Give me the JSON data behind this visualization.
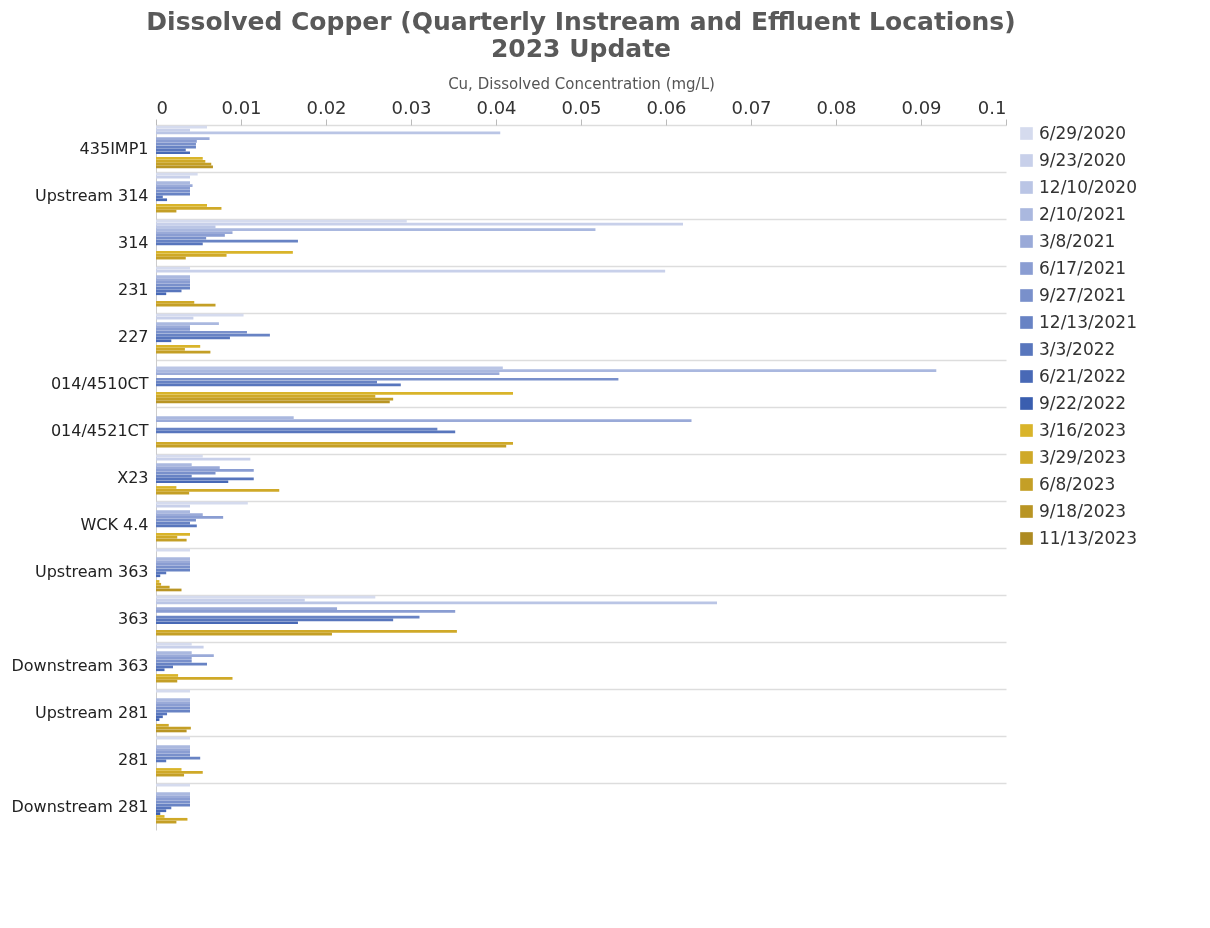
{
  "chart_data": {
    "type": "bar",
    "orientation": "horizontal",
    "title": "Dissolved Copper (Quarterly Instream and Effluent Locations)\n2023 Update",
    "xlabel": "Cu, Dissolved Concentration (mg/L)",
    "categories": [
      "435IMP1",
      "Upstream 314",
      "314",
      "231",
      "227",
      "014/4510CT",
      "014/4521CT",
      "X23",
      "WCK 4.4",
      "Upstream 363",
      "363",
      "Downstream 363",
      "Upstream 281",
      "281",
      "Downstream 281"
    ],
    "xlim": [
      0,
      0.1
    ],
    "xticks": [
      0,
      0.01,
      0.02,
      0.03,
      0.04,
      0.05,
      0.06,
      0.07,
      0.08,
      0.09,
      0.1
    ],
    "grid": "y",
    "legend": "right",
    "series": [
      {
        "name": "6/29/2020",
        "color": "#d5dbee",
        "values": [
          0.006,
          0.0049,
          0.0295,
          0.004,
          0.0103,
          null,
          null,
          0.0055,
          0.0108,
          0.004,
          0.0258,
          0.0042,
          0.004,
          0.004,
          0.004
        ]
      },
      {
        "name": "9/23/2020",
        "color": "#c8d0ea",
        "values": [
          0.004,
          0.004,
          0.062,
          0.0599,
          0.0044,
          null,
          null,
          0.0111,
          0.004,
          null,
          0.0175,
          0.0056,
          null,
          null,
          null
        ]
      },
      {
        "name": "12/10/2020",
        "color": "#bac5e5",
        "values": [
          0.0405,
          null,
          0.007,
          null,
          null,
          0.0408,
          null,
          null,
          null,
          null,
          0.066,
          null,
          null,
          null,
          null
        ]
      },
      {
        "name": "2/10/2021",
        "color": "#aab8df",
        "values": [
          null,
          0.004,
          0.0517,
          0.004,
          0.0074,
          0.0918,
          0.0162,
          0.0042,
          0.004,
          0.004,
          null,
          0.0042,
          0.004,
          0.004,
          0.004
        ]
      },
      {
        "name": "3/8/2021",
        "color": "#9aaad8",
        "values": [
          0.0063,
          0.0043,
          0.009,
          0.004,
          0.004,
          0.0404,
          0.063,
          0.0075,
          0.0055,
          0.004,
          0.0213,
          0.0068,
          0.004,
          0.004,
          0.004
        ]
      },
      {
        "name": "6/17/2021",
        "color": "#8a9dd2",
        "values": [
          0.0048,
          0.004,
          0.0081,
          0.004,
          0.004,
          null,
          null,
          0.0115,
          0.0079,
          0.004,
          0.0352,
          0.0042,
          0.004,
          0.004,
          0.004
        ]
      },
      {
        "name": "9/27/2021",
        "color": "#7990cb",
        "values": [
          0.0047,
          0.004,
          0.0059,
          0.004,
          0.0107,
          0.0544,
          null,
          0.007,
          0.0047,
          0.004,
          null,
          0.0042,
          0.004,
          0.004,
          0.004
        ]
      },
      {
        "name": "12/13/2021",
        "color": "#6883c4",
        "values": [
          0.0047,
          0.004,
          0.0167,
          0.004,
          0.0134,
          0.026,
          0.0331,
          0.0042,
          0.004,
          0.004,
          0.031,
          0.006,
          0.004,
          0.0052,
          0.004
        ]
      },
      {
        "name": "3/3/2022",
        "color": "#5876bd",
        "values": [
          0.0035,
          0.0008,
          0.0055,
          0.003,
          0.0087,
          0.0288,
          0.0352,
          0.0115,
          0.0048,
          0.0012,
          0.0279,
          0.002,
          0.0013,
          0.0012,
          0.0018
        ]
      },
      {
        "name": "6/21/2022",
        "color": "#4869b6",
        "values": [
          0.004,
          0.0013,
          null,
          0.0012,
          0.0018,
          null,
          null,
          0.0085,
          null,
          0.0005,
          0.0167,
          0.001,
          0.0008,
          null,
          0.0012
        ]
      },
      {
        "name": "9/22/2022",
        "color": "#3a5eaf",
        "values": [
          null,
          null,
          null,
          null,
          null,
          null,
          null,
          null,
          null,
          null,
          null,
          null,
          0.0004,
          null,
          0.0005
        ]
      },
      {
        "name": "3/16/2023",
        "color": "#d9b42a",
        "values": [
          0.0055,
          0.006,
          0.0161,
          null,
          0.0052,
          0.042,
          null,
          0.0024,
          0.004,
          0.0004,
          null,
          0.0026,
          null,
          0.003,
          0.001
        ]
      },
      {
        "name": "3/29/2023",
        "color": "#cfa928",
        "values": [
          0.0058,
          0.0077,
          0.0083,
          0.0045,
          0.0034,
          0.0258,
          0.042,
          0.0145,
          0.0025,
          0.0006,
          0.0354,
          0.009,
          0.0015,
          0.0055,
          0.0037
        ]
      },
      {
        "name": "6/8/2023",
        "color": "#c49f26",
        "values": [
          0.0065,
          0.0024,
          0.0035,
          0.007,
          0.0064,
          0.0279,
          0.0412,
          0.0039,
          0.0036,
          0.0016,
          0.0207,
          0.0025,
          0.0041,
          0.0033,
          0.0024
        ]
      },
      {
        "name": "9/18/2023",
        "color": "#b99524",
        "values": [
          0.0067,
          null,
          null,
          null,
          null,
          0.0275,
          null,
          null,
          null,
          0.003,
          null,
          null,
          0.0036,
          null,
          null
        ]
      },
      {
        "name": "11/13/2023",
        "color": "#ae8b22",
        "values": [
          null,
          null,
          null,
          null,
          null,
          null,
          null,
          null,
          null,
          null,
          null,
          null,
          null,
          null,
          null
        ]
      }
    ]
  }
}
